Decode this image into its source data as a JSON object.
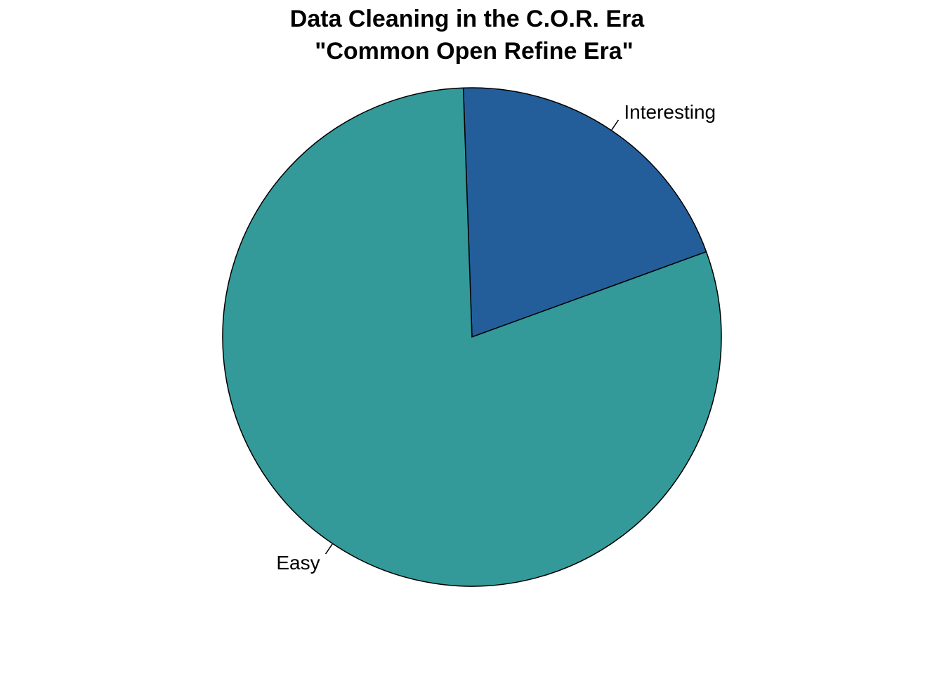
{
  "chart_data": {
    "type": "pie",
    "title": "Data Cleaning in the C.O.R. Era",
    "subtitle": "\"Common Open Refine Era\"",
    "slices": [
      {
        "label": "Interesting",
        "value": 20,
        "color": "#235e9a"
      },
      {
        "label": "Easy",
        "value": 80,
        "color": "#339999"
      }
    ],
    "start_angle_deg": 20,
    "direction": "counterclockwise",
    "border_color": "#000000"
  }
}
